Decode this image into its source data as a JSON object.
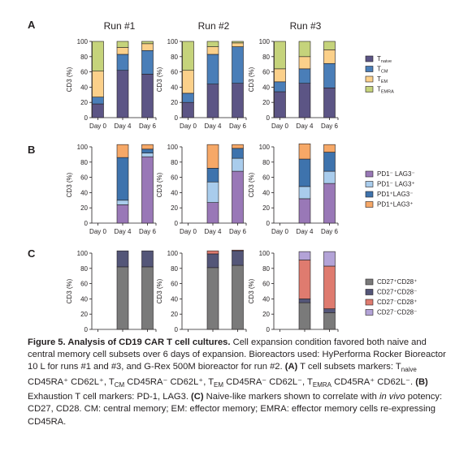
{
  "panel_letters": [
    "A",
    "B",
    "C"
  ],
  "run_titles": [
    "Run #1",
    "Run #2",
    "Run #3"
  ],
  "ylabel": "CD3 (%)",
  "days": [
    "Day 0",
    "Day 4",
    "Day 6"
  ],
  "yticks": [
    0,
    20,
    40,
    60,
    80,
    100
  ],
  "chart_data": [
    {
      "type": "bar",
      "stacked": true,
      "panel": "A",
      "legend_placement": "right",
      "ylabel": "CD3 (%)",
      "ylim": [
        0,
        100
      ],
      "categories": [
        "Day 0",
        "Day 4",
        "Day 6"
      ],
      "series_names": [
        {
          "main": "T",
          "sub": "naive"
        },
        {
          "main": "T",
          "sub": "CM"
        },
        {
          "main": "T",
          "sub": "EM"
        },
        {
          "main": "T",
          "sub": "EMRA"
        }
      ],
      "colors": [
        "#5c5585",
        "#4a7eb8",
        "#fbd08a",
        "#c5d37b"
      ],
      "runs": [
        {
          "title": "Run #1",
          "stacks": [
            [
              18,
              9,
              34,
              39
            ],
            [
              62,
              21,
              9,
              8
            ],
            [
              57,
              31,
              9,
              3
            ]
          ]
        },
        {
          "title": "Run #2",
          "stacks": [
            [
              20,
              12,
              30,
              38
            ],
            [
              44,
              39,
              10,
              7
            ],
            [
              45,
              48,
              5,
              2
            ]
          ]
        },
        {
          "title": "Run #3",
          "stacks": [
            [
              34,
              13,
              17,
              36
            ],
            [
              45,
              19,
              16,
              20
            ],
            [
              39,
              32,
              18,
              11
            ]
          ]
        }
      ]
    },
    {
      "type": "bar",
      "stacked": true,
      "panel": "B",
      "legend_placement": "right",
      "ylabel": "CD3 (%)",
      "ylim": [
        0,
        100
      ],
      "categories": [
        "Day 0",
        "Day 4",
        "Day 6"
      ],
      "series_names": [
        {
          "main": "PD1⁻ LAG3⁻",
          "sub": ""
        },
        {
          "main": "PD1⁻ LAG3⁺",
          "sub": ""
        },
        {
          "main": "PD1⁺LAG3⁻",
          "sub": ""
        },
        {
          "main": "PD1⁺LAG3⁺",
          "sub": ""
        }
      ],
      "colors": [
        "#9978b7",
        "#a9ccec",
        "#3e73ad",
        "#f6a867"
      ],
      "runs": [
        {
          "title": "Run #1",
          "stacks": [
            [
              0,
              0,
              0,
              0
            ],
            [
              24,
              6,
              56,
              17
            ],
            [
              87,
              5,
              5,
              6
            ]
          ]
        },
        {
          "title": "Run #2",
          "stacks": [
            [
              0,
              0,
              0,
              0
            ],
            [
              27,
              27,
              18,
              31
            ],
            [
              68,
              17,
              13,
              5
            ]
          ]
        },
        {
          "title": "Run #3",
          "stacks": [
            [
              0,
              0,
              0,
              0
            ],
            [
              32,
              16,
              36,
              20
            ],
            [
              52,
              16,
              25,
              10
            ]
          ]
        }
      ]
    },
    {
      "type": "bar",
      "stacked": true,
      "panel": "C",
      "legend_placement": "right",
      "ylabel": "CD3 (%)",
      "ylim": [
        0,
        100
      ],
      "categories": [
        "Day 0",
        "Day 4",
        "Day 6"
      ],
      "series_names": [
        {
          "main": "CD27⁺CD28⁺",
          "sub": ""
        },
        {
          "main": "CD27⁺CD28⁻",
          "sub": ""
        },
        {
          "main": "CD27⁻CD28⁺",
          "sub": ""
        },
        {
          "main": "CD27⁻CD28⁻",
          "sub": ""
        }
      ],
      "colors": [
        "#7a7a7a",
        "#545678",
        "#df7b6f",
        "#b3a3d7"
      ],
      "runs": [
        {
          "title": "Run #1",
          "stacks": [
            [
              0,
              0,
              0,
              0
            ],
            [
              82,
              21,
              0,
              0
            ],
            [
              82,
              21,
              0,
              0
            ]
          ]
        },
        {
          "title": "Run #2",
          "stacks": [
            [
              0,
              0,
              0,
              0
            ],
            [
              81,
              18,
              4,
              0
            ],
            [
              84,
              19,
              1,
              0
            ]
          ]
        },
        {
          "title": "Run #3",
          "stacks": [
            [
              0,
              0,
              0,
              0
            ],
            [
              35,
              5,
              51,
              11
            ],
            [
              22,
              5,
              56,
              19
            ]
          ]
        }
      ]
    }
  ],
  "caption": {
    "title": "Figure 5. Analysis of CD19 CAR T cell cultures.",
    "text1": " Cell expansion condition favored both naive and central memory cell subsets over 6 days of expansion. Bioreactors used: HyPerforma Rocker Bioreactor 10 L for runs #1 and #3, and G-Rex 500M bioreactor for run #2. ",
    "labelA": "(A)",
    "text2": " T cell subsets markers: T",
    "sub_naive": "naive",
    "text3": " CD45RA⁺ CD62L⁺, T",
    "sub_cm": "CM",
    "text4": " CD45RA⁻ CD62L⁺, T",
    "sub_em": "EM",
    "text5": " CD45RA⁻ CD62L⁻, T",
    "sub_emra": "EMRA",
    "text6": " CD45RA⁺ CD62L⁻. ",
    "labelB": "(B)",
    "text7": " Exhaustion T cell markers: PD-1, LAG3. ",
    "labelC": "(C)",
    "text8": " Naive-like markers shown to correlate with ",
    "italic": "in vivo",
    "text9": " potency: CD27, CD28. CM: central memory; EM: effector memory; EMRA: effector memory cells re-expressing CD45RA."
  }
}
